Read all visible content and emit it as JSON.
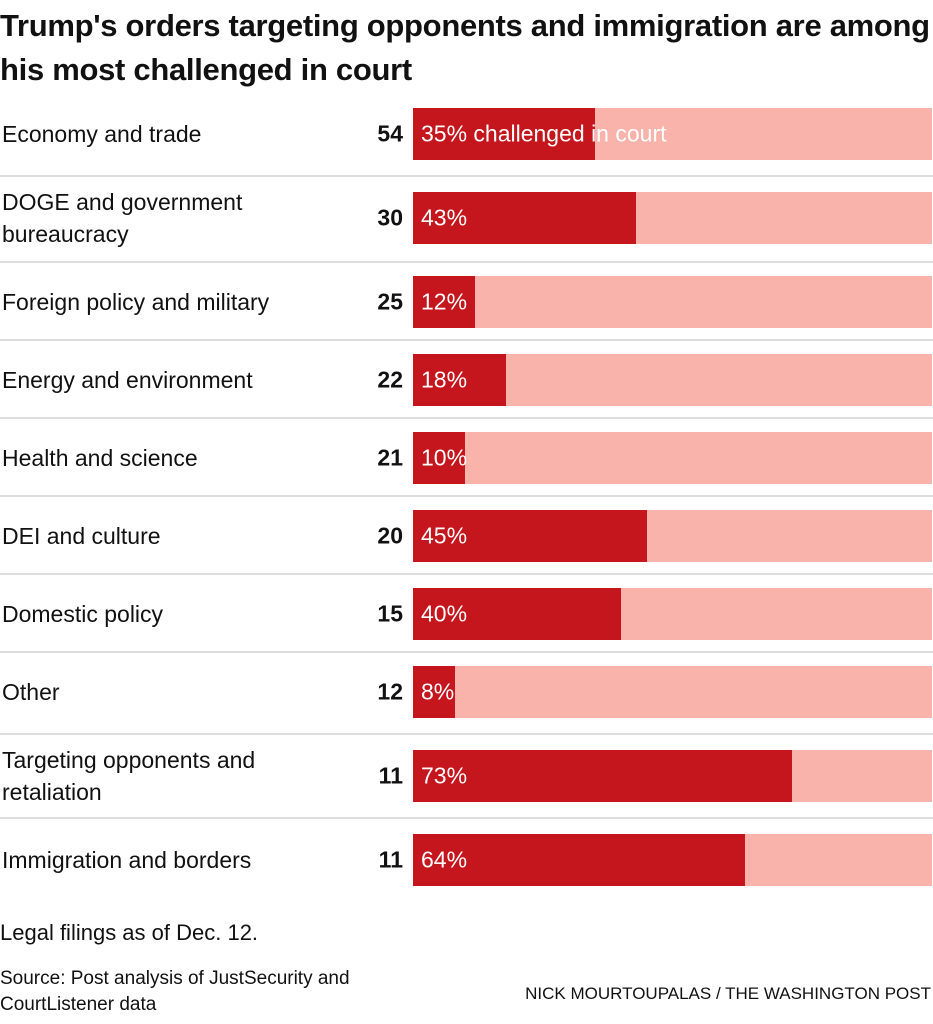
{
  "chart_data": {
    "type": "bar",
    "orientation": "horizontal",
    "stacked_share": true,
    "title": "Trump's orders targeting opponents and immigration are among his most challenged in court",
    "categories": [
      "Economy and trade",
      "DOGE and government bureaucracy",
      "Foreign policy and military",
      "Energy and environment",
      "Health and science",
      "DEI and culture",
      "Domestic policy",
      "Other",
      "Targeting opponents and retaliation",
      "Immigration and borders"
    ],
    "counts": [
      54,
      30,
      25,
      22,
      21,
      20,
      15,
      12,
      11,
      11
    ],
    "values": [
      35,
      43,
      12,
      18,
      10,
      45,
      40,
      8,
      73,
      64
    ],
    "value_labels": [
      "35% challenged in court",
      "43%",
      "12%",
      "18%",
      "10%",
      "45%",
      "40%",
      "8%",
      "73%",
      "64%"
    ],
    "xlim": [
      0,
      100
    ],
    "colors": {
      "challenged": "#c4161c",
      "remainder": "#f9b3aa"
    },
    "note": "Legal filings as of Dec. 12.",
    "source": "Source: Post analysis of JustSecurity and CourtListener data",
    "credit": "NICK MOURTOUPALAS / THE WASHINGTON POST"
  }
}
